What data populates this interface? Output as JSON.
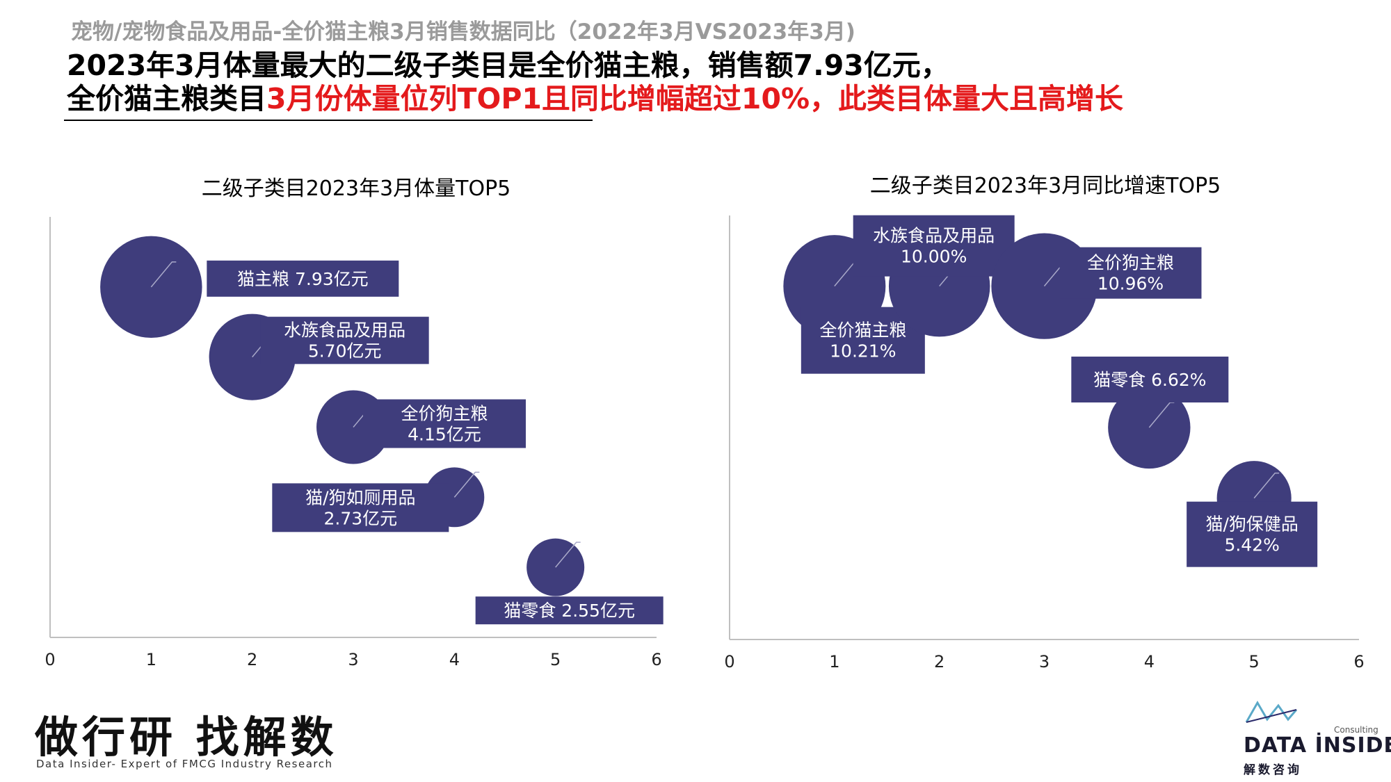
{
  "header": {
    "supertitle": "宠物/宠物食品及用品-全价猫主粮3月销售数据同比（2022年3月VS2023年3月)",
    "line1": "2023年3月体量最大的二级子类目是全价猫主粮，销售额7.93亿元，",
    "line2_black": "全价猫主粮类目",
    "line2_red": "3月份体量位列TOP1且同比增幅超过10%，此类目体量大且高增长"
  },
  "colors": {
    "bubble": "#3f3d7c",
    "label_bg": "#3f3d7c",
    "label_text": "#ffffff",
    "axis": "#bfbfbf",
    "highlight_red": "#e41a1c"
  },
  "chart_data": [
    {
      "type": "scatter",
      "title": "二级子类目2023年3月体量TOP5",
      "xlim": [
        0,
        6
      ],
      "xticks": [
        "0",
        "1",
        "2",
        "3",
        "4",
        "5",
        "6"
      ],
      "points": [
        {
          "x": 1,
          "y": 5,
          "size": 7.93,
          "label": [
            "猫主粮  7.93亿元"
          ]
        },
        {
          "x": 2,
          "y": 4,
          "size": 5.7,
          "label": [
            "水族食品及用品",
            "5.70亿元"
          ]
        },
        {
          "x": 3,
          "y": 3,
          "size": 4.15,
          "label": [
            "全价狗主粮",
            "4.15亿元"
          ]
        },
        {
          "x": 4,
          "y": 2,
          "size": 2.73,
          "label": [
            "猫/狗如厕用品",
            "2.73亿元"
          ]
        },
        {
          "x": 5,
          "y": 1,
          "size": 2.55,
          "label": [
            "猫零食  2.55亿元"
          ]
        }
      ]
    },
    {
      "type": "scatter",
      "title": "二级子类目2023年3月同比增速TOP5",
      "xlim": [
        0,
        6
      ],
      "xticks": [
        "0",
        "1",
        "2",
        "3",
        "4",
        "5",
        "6"
      ],
      "points": [
        {
          "x": 1,
          "y": 5,
          "size": 10.21,
          "label": [
            "全价猫主粮",
            "10.21%"
          ]
        },
        {
          "x": 2,
          "y": 5,
          "size": 10.0,
          "label": [
            "水族食品及用品",
            "10.00%"
          ]
        },
        {
          "x": 3,
          "y": 5,
          "size": 10.96,
          "label": [
            "全价狗主粮",
            "10.96%"
          ]
        },
        {
          "x": 4,
          "y": 3,
          "size": 6.62,
          "label": [
            "猫零食 6.62%"
          ]
        },
        {
          "x": 5,
          "y": 2,
          "size": 5.42,
          "label": [
            "猫/狗保健品",
            "5.42%"
          ]
        }
      ]
    }
  ],
  "footer": {
    "slogan": "做行研 找解数",
    "tagline": "Data Insider- Expert of FMCG Industry Research"
  },
  "logo": {
    "name": "DATA İNSIDER",
    "consulting": "Consulting",
    "sub": "解数咨询"
  }
}
